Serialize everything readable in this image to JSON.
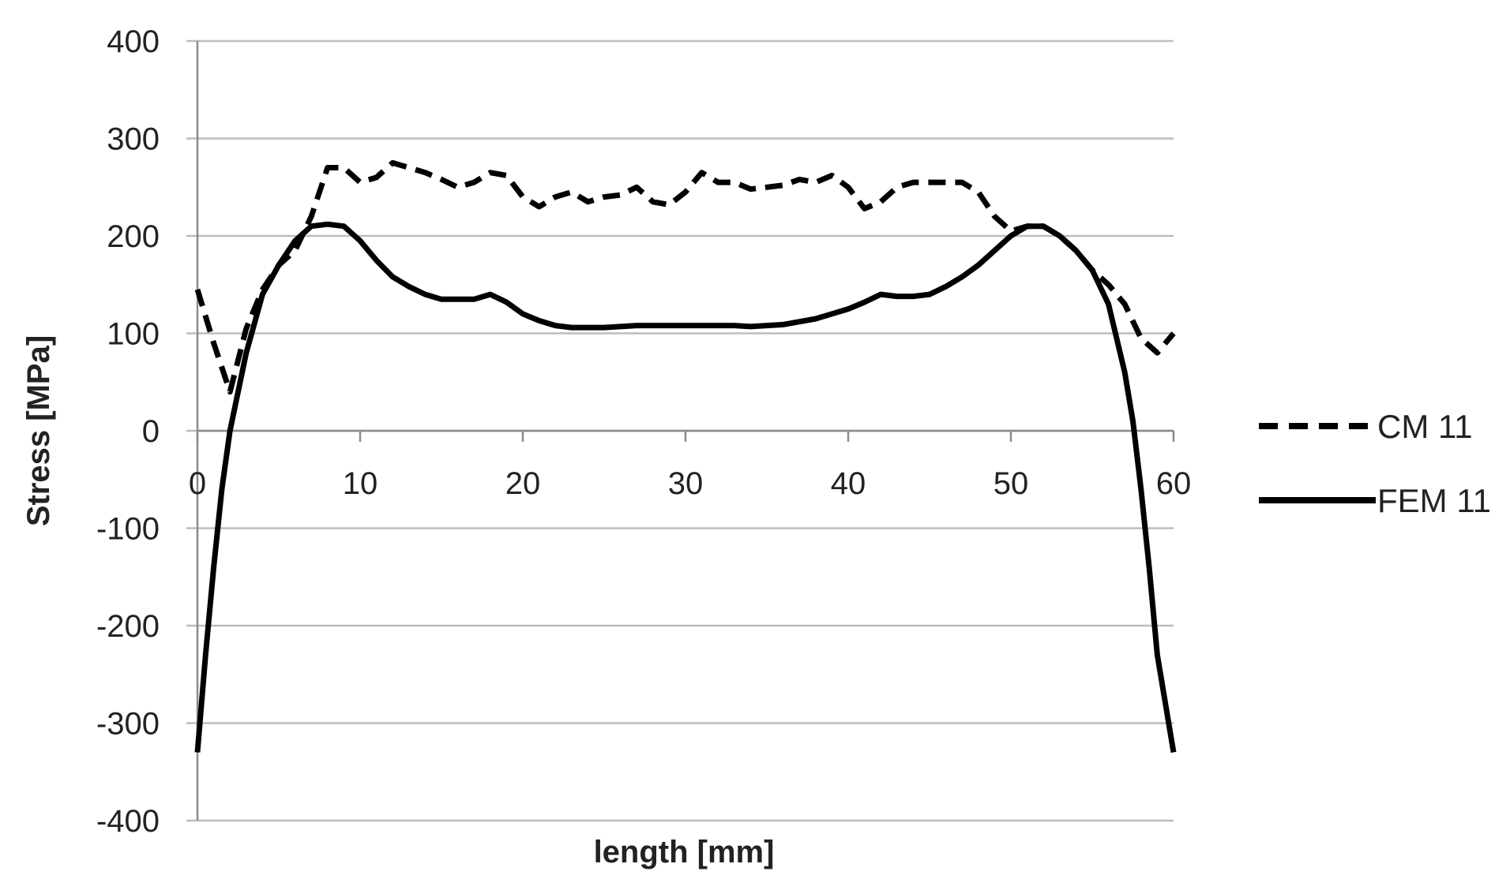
{
  "chart_data": {
    "type": "line",
    "title": "",
    "xlabel": "length [mm]",
    "ylabel": "Stress [MPa]",
    "xlim": [
      0,
      60
    ],
    "ylim": [
      -400,
      400
    ],
    "x_ticks": [
      0,
      10,
      20,
      30,
      40,
      50,
      60
    ],
    "y_ticks": [
      400,
      300,
      200,
      100,
      0,
      -100,
      -200,
      -300,
      -400
    ],
    "grid": "horizontal",
    "legend_position": "right",
    "series": [
      {
        "name": "CM 11",
        "style": "dashed",
        "color": "#000000",
        "x": [
          0,
          1,
          2,
          3,
          4,
          5,
          6,
          7,
          8,
          9,
          10,
          11,
          12,
          13,
          14,
          15,
          16,
          17,
          18,
          19,
          20,
          21,
          22,
          23,
          24,
          25,
          26,
          27,
          28,
          29,
          30,
          31,
          32,
          33,
          34,
          35,
          36,
          37,
          38,
          39,
          40,
          41,
          42,
          43,
          44,
          45,
          46,
          47,
          48,
          49,
          50,
          51,
          52,
          53,
          54,
          55,
          56,
          57,
          58,
          59,
          60
        ],
        "y": [
          145,
          90,
          40,
          105,
          145,
          170,
          185,
          220,
          270,
          270,
          255,
          260,
          275,
          270,
          265,
          258,
          250,
          255,
          265,
          262,
          240,
          230,
          240,
          245,
          235,
          240,
          242,
          250,
          235,
          232,
          245,
          265,
          255,
          255,
          248,
          250,
          252,
          258,
          255,
          262,
          250,
          228,
          235,
          250,
          255,
          255,
          255,
          255,
          245,
          220,
          205,
          210,
          210,
          200,
          185,
          165,
          150,
          130,
          95,
          80,
          100
        ]
      },
      {
        "name": "FEM 11",
        "style": "solid",
        "color": "#000000",
        "x": [
          0,
          0.5,
          1,
          1.5,
          2,
          3,
          4,
          5,
          6,
          7,
          8,
          9,
          10,
          11,
          12,
          13,
          14,
          15,
          16,
          17,
          18,
          19,
          20,
          21,
          22,
          23,
          24,
          25,
          26,
          27,
          28,
          29,
          30,
          31,
          32,
          33,
          34,
          35,
          36,
          37,
          38,
          39,
          40,
          41,
          42,
          43,
          44,
          45,
          46,
          47,
          48,
          49,
          50,
          51,
          52,
          53,
          54,
          55,
          56,
          57,
          57.5,
          58,
          58.5,
          59,
          59.5,
          60
        ],
        "y": [
          -330,
          -230,
          -140,
          -60,
          0,
          80,
          140,
          170,
          195,
          210,
          212,
          210,
          195,
          175,
          158,
          148,
          140,
          135,
          135,
          135,
          140,
          132,
          120,
          113,
          108,
          106,
          106,
          106,
          107,
          108,
          108,
          108,
          108,
          108,
          108,
          108,
          107,
          108,
          109,
          112,
          115,
          120,
          125,
          132,
          140,
          138,
          138,
          140,
          148,
          158,
          170,
          185,
          200,
          210,
          210,
          200,
          185,
          165,
          130,
          60,
          10,
          -60,
          -140,
          -230,
          -280,
          -330
        ]
      }
    ]
  }
}
